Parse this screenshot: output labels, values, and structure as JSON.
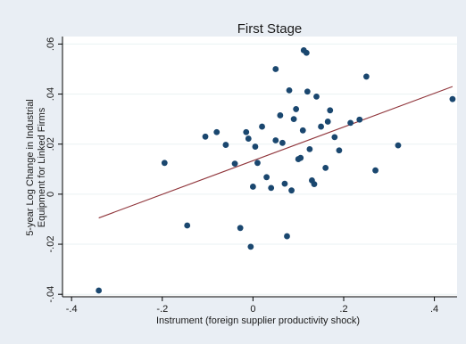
{
  "chart_data": {
    "type": "scatter",
    "title": "First Stage",
    "xlabel": "Instrument (foreign supplier productivity shock)",
    "ylabel_lines": [
      "5-year Log Change in Industrial",
      "Equipment for Linked Firms"
    ],
    "xlim": [
      -0.42,
      0.45
    ],
    "ylim": [
      -0.041,
      0.063
    ],
    "x_ticks": [
      {
        "value": -0.4,
        "label": "-.4"
      },
      {
        "value": -0.2,
        "label": "-.2"
      },
      {
        "value": 0,
        "label": "0"
      },
      {
        "value": 0.2,
        "label": ".2"
      },
      {
        "value": 0.4,
        "label": ".4"
      }
    ],
    "y_ticks": [
      {
        "value": -0.04,
        "label": "-.04"
      },
      {
        "value": -0.02,
        "label": "-.02"
      },
      {
        "value": 0,
        "label": "0"
      },
      {
        "value": 0.02,
        "label": ".02"
      },
      {
        "value": 0.04,
        "label": ".04"
      },
      {
        "value": 0.06,
        "label": ".06"
      }
    ],
    "grid": "horizontal",
    "colors": {
      "background": "#e9eef4",
      "plot_background": "#ffffff",
      "points": "#1a476f",
      "fit_line": "#90353b",
      "grid": "#eaf2f3",
      "axis": "#000000"
    },
    "fit_line": {
      "x": [
        -0.34,
        0.44
      ],
      "y": [
        -0.0095,
        0.043
      ]
    },
    "points": [
      {
        "x": -0.34,
        "y": -0.0385
      },
      {
        "x": -0.195,
        "y": 0.0125
      },
      {
        "x": -0.145,
        "y": -0.0125
      },
      {
        "x": -0.105,
        "y": 0.023
      },
      {
        "x": -0.08,
        "y": 0.0248
      },
      {
        "x": -0.06,
        "y": 0.0197
      },
      {
        "x": -0.04,
        "y": 0.0122
      },
      {
        "x": -0.028,
        "y": -0.0135
      },
      {
        "x": -0.015,
        "y": 0.0248
      },
      {
        "x": -0.01,
        "y": 0.0222
      },
      {
        "x": -0.005,
        "y": -0.021
      },
      {
        "x": 0.0,
        "y": 0.003
      },
      {
        "x": 0.005,
        "y": 0.019
      },
      {
        "x": 0.01,
        "y": 0.0125
      },
      {
        "x": 0.02,
        "y": 0.027
      },
      {
        "x": 0.03,
        "y": 0.0068
      },
      {
        "x": 0.04,
        "y": 0.0025
      },
      {
        "x": 0.05,
        "y": 0.05
      },
      {
        "x": 0.05,
        "y": 0.0215
      },
      {
        "x": 0.06,
        "y": 0.0315
      },
      {
        "x": 0.065,
        "y": 0.0205
      },
      {
        "x": 0.07,
        "y": 0.0042
      },
      {
        "x": 0.075,
        "y": -0.0168
      },
      {
        "x": 0.08,
        "y": 0.0415
      },
      {
        "x": 0.085,
        "y": 0.0015
      },
      {
        "x": 0.09,
        "y": 0.03
      },
      {
        "x": 0.095,
        "y": 0.034
      },
      {
        "x": 0.1,
        "y": 0.014
      },
      {
        "x": 0.105,
        "y": 0.0145
      },
      {
        "x": 0.11,
        "y": 0.0255
      },
      {
        "x": 0.112,
        "y": 0.0575
      },
      {
        "x": 0.118,
        "y": 0.0565
      },
      {
        "x": 0.12,
        "y": 0.041
      },
      {
        "x": 0.125,
        "y": 0.018
      },
      {
        "x": 0.13,
        "y": 0.0055
      },
      {
        "x": 0.135,
        "y": 0.004
      },
      {
        "x": 0.14,
        "y": 0.039
      },
      {
        "x": 0.15,
        "y": 0.027
      },
      {
        "x": 0.16,
        "y": 0.0105
      },
      {
        "x": 0.165,
        "y": 0.029
      },
      {
        "x": 0.17,
        "y": 0.0335
      },
      {
        "x": 0.18,
        "y": 0.0228
      },
      {
        "x": 0.19,
        "y": 0.0175
      },
      {
        "x": 0.215,
        "y": 0.0285
      },
      {
        "x": 0.235,
        "y": 0.0298
      },
      {
        "x": 0.25,
        "y": 0.047
      },
      {
        "x": 0.27,
        "y": 0.0095
      },
      {
        "x": 0.32,
        "y": 0.0195
      },
      {
        "x": 0.44,
        "y": 0.038
      }
    ]
  }
}
